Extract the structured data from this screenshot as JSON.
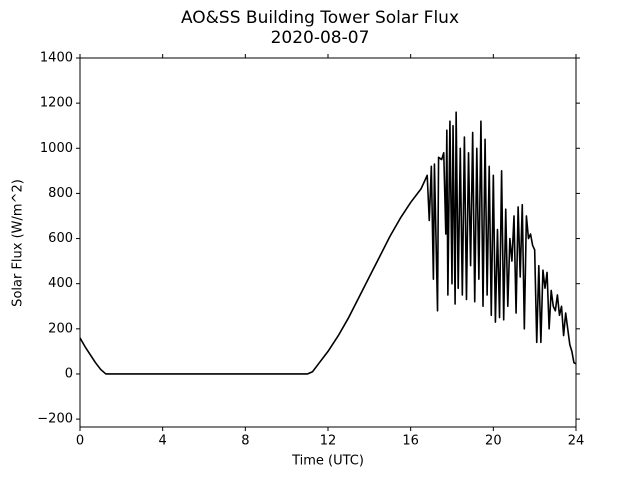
{
  "chart_data": {
    "type": "line",
    "title": "AO&SS Building Tower Solar Flux",
    "subtitle": "2020-08-07",
    "x_label": "Time (UTC)",
    "y_label": "Solar Flux (W/m^2)",
    "xlim": [
      0,
      24
    ],
    "xticks": [
      0,
      4,
      8,
      12,
      16,
      20,
      24
    ],
    "ylim": [
      -235,
      1400
    ],
    "yticks": [
      {
        "value": -200,
        "label": "−200"
      },
      0,
      200,
      400,
      600,
      800,
      1000,
      1200,
      1400
    ],
    "grid": false,
    "series": [
      {
        "color": "#000000",
        "x": [
          0,
          0.25,
          0.5,
          0.75,
          1.0,
          1.25,
          11.0,
          11.25,
          11.5,
          12,
          12.5,
          13,
          13.5,
          14,
          14.5,
          15,
          15.5,
          16,
          16.5,
          16.8,
          16.9,
          17.0,
          17.1,
          17.15,
          17.3,
          17.35,
          17.5,
          17.6,
          17.7,
          17.75,
          17.8,
          17.9,
          18.0,
          18.05,
          18.15,
          18.2,
          18.3,
          18.4,
          18.5,
          18.6,
          18.7,
          18.8,
          18.9,
          19.0,
          19.1,
          19.2,
          19.3,
          19.4,
          19.5,
          19.6,
          19.7,
          19.8,
          19.9,
          20.0,
          20.1,
          20.2,
          20.3,
          20.4,
          20.5,
          20.6,
          20.7,
          20.8,
          20.9,
          21.0,
          21.1,
          21.2,
          21.3,
          21.4,
          21.5,
          21.6,
          21.7,
          21.8,
          21.9,
          22.0,
          22.1,
          22.2,
          22.3,
          22.4,
          22.5,
          22.6,
          22.7,
          22.8,
          22.9,
          23.0,
          23.1,
          23.2,
          23.3,
          23.4,
          23.5,
          23.6,
          23.7,
          23.8,
          23.9,
          24.0
        ],
        "values": [
          160,
          120,
          85,
          50,
          20,
          0,
          0,
          10,
          40,
          100,
          170,
          250,
          340,
          430,
          520,
          610,
          690,
          760,
          820,
          880,
          680,
          920,
          420,
          930,
          280,
          960,
          950,
          980,
          620,
          1080,
          350,
          1120,
          400,
          1100,
          310,
          1160,
          380,
          1000,
          350,
          1050,
          330,
          980,
          480,
          1070,
          320,
          1000,
          420,
          1120,
          300,
          1040,
          350,
          920,
          260,
          880,
          230,
          640,
          250,
          900,
          240,
          730,
          300,
          600,
          500,
          700,
          270,
          740,
          430,
          750,
          200,
          700,
          600,
          620,
          570,
          550,
          140,
          480,
          140,
          460,
          380,
          450,
          200,
          370,
          300,
          280,
          350,
          260,
          300,
          170,
          270,
          200,
          130,
          100,
          50,
          45
        ]
      }
    ]
  }
}
